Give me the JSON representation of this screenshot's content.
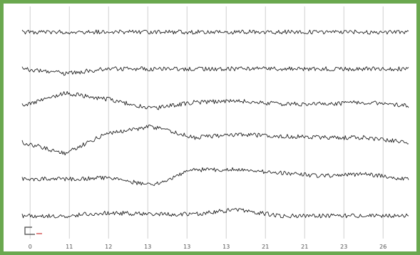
{
  "chart_data": {
    "type": "line",
    "title": "",
    "xlabel": "",
    "ylabel": "",
    "x_ticks": [
      "0",
      "11",
      "12",
      "13",
      "13",
      "13",
      "21",
      "21",
      "23",
      "26"
    ],
    "series": [
      {
        "values": [
          0,
          0,
          0,
          0,
          0,
          0,
          0,
          0,
          0,
          0
        ]
      },
      {
        "values": [
          0,
          -0.3,
          0,
          0,
          0,
          0,
          0,
          0,
          0,
          0
        ]
      },
      {
        "values": [
          0,
          0.8,
          0.4,
          -0.2,
          0.2,
          0.3,
          0.1,
          0.1,
          0.2,
          0
        ]
      },
      {
        "values": [
          0,
          -0.7,
          0.6,
          1,
          0.3,
          0.5,
          0.4,
          0.3,
          0.3,
          0
        ]
      },
      {
        "values": [
          0,
          0,
          0.1,
          -0.4,
          0.6,
          0.6,
          0.4,
          0.2,
          0.3,
          0
        ]
      },
      {
        "values": [
          0,
          0,
          0.2,
          0.1,
          0.1,
          0.4,
          0,
          0,
          0,
          0
        ]
      }
    ],
    "grid": true,
    "colors": {
      "trace": "#222222",
      "grid": "#d0d0d0",
      "frame": "#6aa84f",
      "scale_bar": "#444444",
      "scale_accent": "#cc3333"
    }
  }
}
